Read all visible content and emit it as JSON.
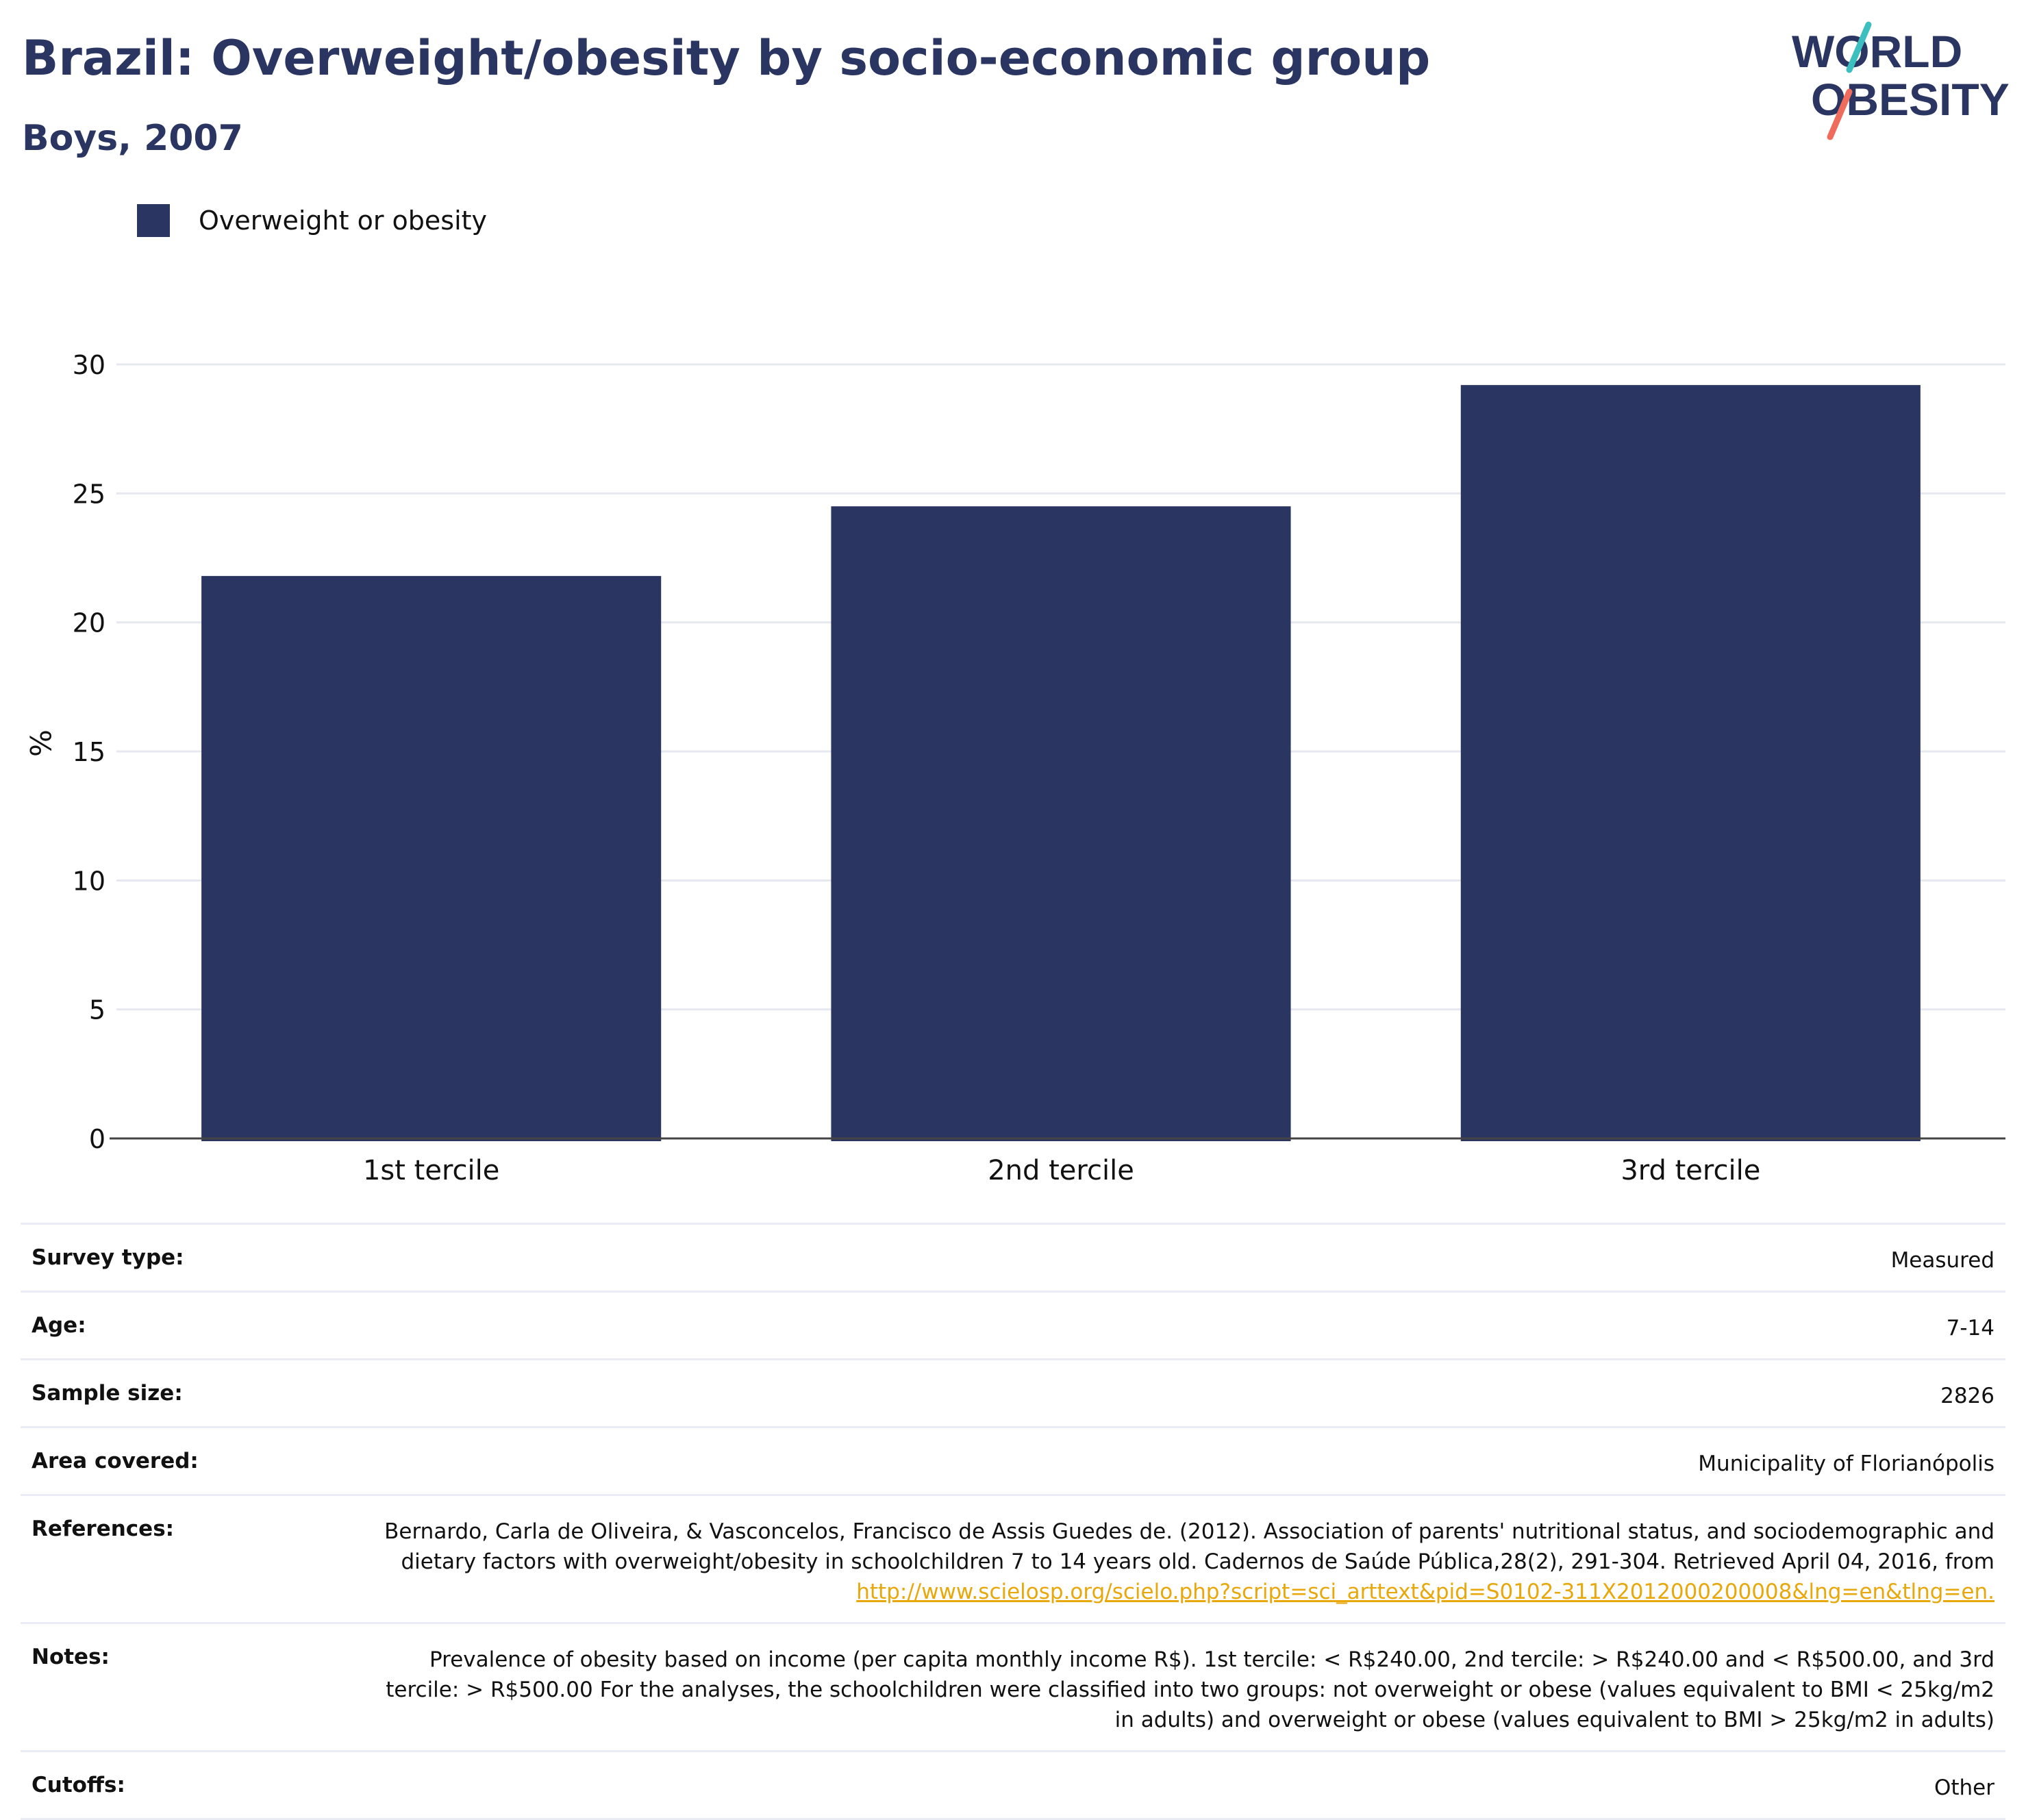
{
  "header": {
    "title": "Brazil: Overweight/obesity by socio-economic group",
    "subtitle": "Boys, 2007"
  },
  "logo": {
    "line1": "WORLD",
    "line2": "OBESITY",
    "accent_teal": "#3dbfbf",
    "accent_coral": "#ef6b5b"
  },
  "colors": {
    "bar": "#2a3562",
    "title": "#2a3562",
    "link": "#e8a70b"
  },
  "chart_data": {
    "type": "bar",
    "categories": [
      "1st tercile",
      "2nd tercile",
      "3rd tercile"
    ],
    "series": [
      {
        "name": "Overweight or obesity",
        "values": [
          21.8,
          24.5,
          29.2
        ]
      }
    ],
    "ylabel": "%",
    "xlabel": "",
    "ylim": [
      0,
      30
    ],
    "yticks": [
      0,
      5,
      10,
      15,
      20,
      25,
      30
    ],
    "grid": true,
    "legend": "top-left"
  },
  "details": {
    "survey_type": {
      "label": "Survey type:",
      "value": "Measured"
    },
    "age": {
      "label": "Age:",
      "value": "7-14"
    },
    "sample_size": {
      "label": "Sample size:",
      "value": "2826"
    },
    "area": {
      "label": "Area covered:",
      "value": "Municipality of Florianópolis"
    },
    "references": {
      "label": "References:",
      "text": "Bernardo, Carla de Oliveira, & Vasconcelos, Francisco de Assis Guedes de. (2012). Association of parents' nutritional status, and sociodemographic and dietary factors with overweight/obesity in schoolchildren 7 to 14 years old. Cadernos de Saúde Pública,28(2), 291-304. Retrieved April 04, 2016, from ",
      "link": "http://www.scielosp.org/scielo.php?script=sci_arttext&pid=S0102-311X2012000200008&lng=en&tlng=en."
    },
    "notes": {
      "label": "Notes:",
      "value": "Prevalence of obesity based on income (per capita monthly income R$). 1st tercile: < R$240.00, 2nd tercile: > R$240.00 and < R$500.00, and 3rd tercile: > R$500.00 For the analyses, the schoolchildren were classified into two groups: not overweight or obese (values equivalent to BMI < 25kg/m2 in adults) and overweight or obese (values equivalent to BMI > 25kg/m2 in adults)"
    },
    "cutoffs": {
      "label": "Cutoffs:",
      "value": "Other"
    }
  }
}
